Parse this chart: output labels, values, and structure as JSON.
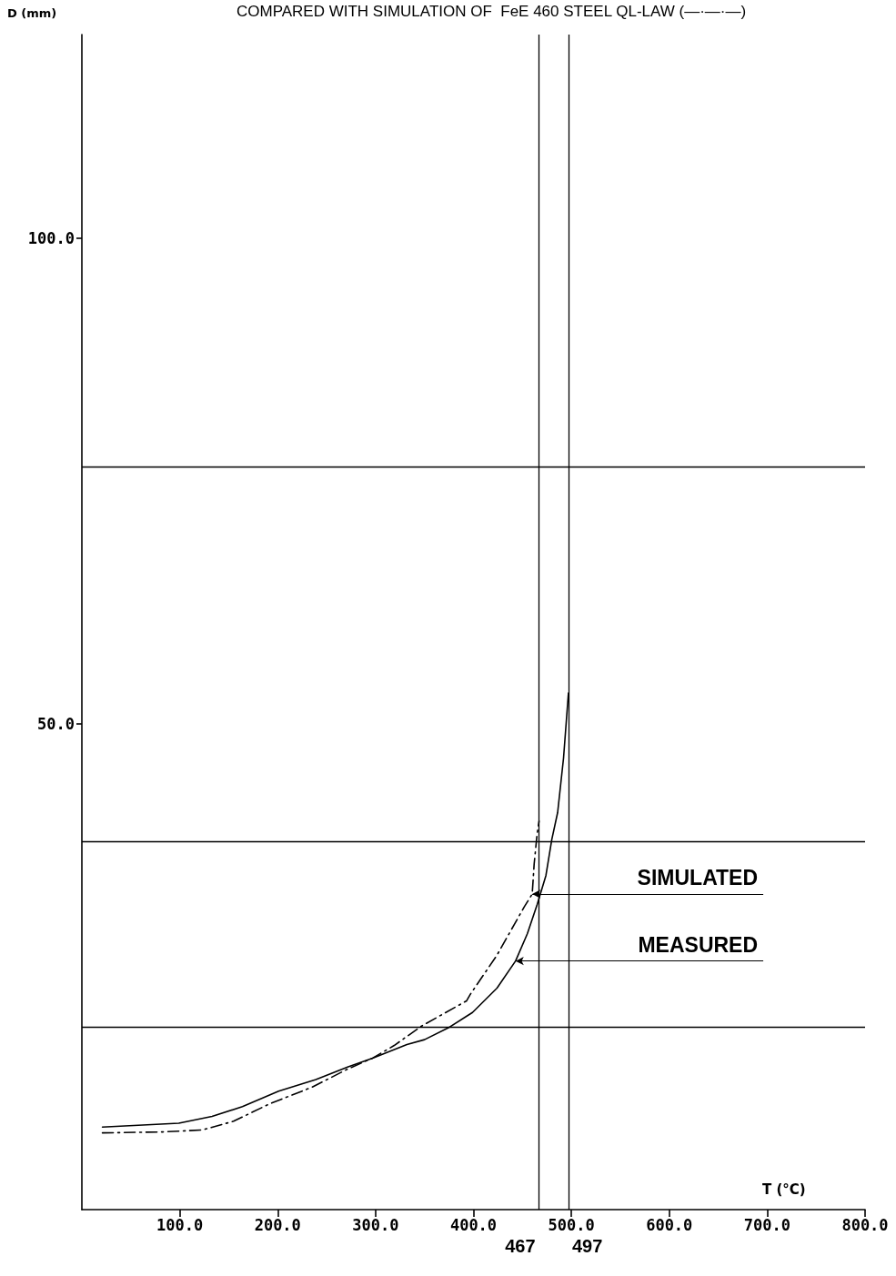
{
  "chart_data": {
    "type": "line",
    "title": "COMPARED WITH SIMULATION OF  FeE 460 STEEL QL-LAW (—·—·—)",
    "xlabel": "T (°C)",
    "ylabel": "D (mm)",
    "xlim": [
      0,
      800
    ],
    "ylim": [
      0,
      121
    ],
    "xticks": [
      {
        "value": 100,
        "label": "100.0"
      },
      {
        "value": 200,
        "label": "200.0"
      },
      {
        "value": 300,
        "label": "300.0"
      },
      {
        "value": 400,
        "label": "400.0"
      },
      {
        "value": 500,
        "label": "500.0"
      },
      {
        "value": 600,
        "label": "600.0"
      },
      {
        "value": 700,
        "label": "700.0"
      },
      {
        "value": 800,
        "label": "800.0"
      }
    ],
    "yticks": [
      {
        "value": 50,
        "label": "50.0"
      },
      {
        "value": 100,
        "label": "100.0"
      }
    ],
    "grid": false,
    "legend": false,
    "marker": "none",
    "series": [
      {
        "name": "MEASURED",
        "color": "#000000",
        "line_style": "solid",
        "x": [
          21,
          99,
          133,
          164,
          201,
          239,
          272,
          297,
          332,
          350,
          374,
          399,
          424,
          443,
          455,
          465,
          474,
          480,
          486,
          492,
          497
        ],
        "values": [
          8.5,
          8.9,
          9.6,
          10.6,
          12.2,
          13.4,
          14.7,
          15.6,
          17.0,
          17.5,
          18.7,
          20.3,
          22.8,
          25.6,
          28.4,
          31.4,
          34.4,
          38.1,
          40.9,
          46.5,
          53.2
        ]
      },
      {
        "name": "SIMULATED",
        "color": "#000000",
        "line_style": "dashed",
        "x": [
          21,
          83,
          123,
          155,
          192,
          235,
          272,
          297,
          319,
          347,
          393,
          397,
          424,
          452,
          460,
          462,
          465,
          467
        ],
        "values": [
          7.9,
          8.0,
          8.2,
          9.1,
          10.9,
          12.6,
          14.5,
          15.6,
          16.9,
          18.9,
          21.5,
          22.2,
          26.2,
          31.2,
          32.5,
          35.6,
          38.7,
          40.0
        ]
      }
    ],
    "ref_lines": [
      {
        "axis": "y",
        "value": 76.5,
        "label": null
      },
      {
        "axis": "y",
        "value": 37.9,
        "label": null
      },
      {
        "axis": "y",
        "value": 18.8,
        "label": null
      },
      {
        "axis": "x",
        "value": 467,
        "label": "467"
      },
      {
        "axis": "x",
        "value": 497,
        "label": "497"
      }
    ]
  }
}
